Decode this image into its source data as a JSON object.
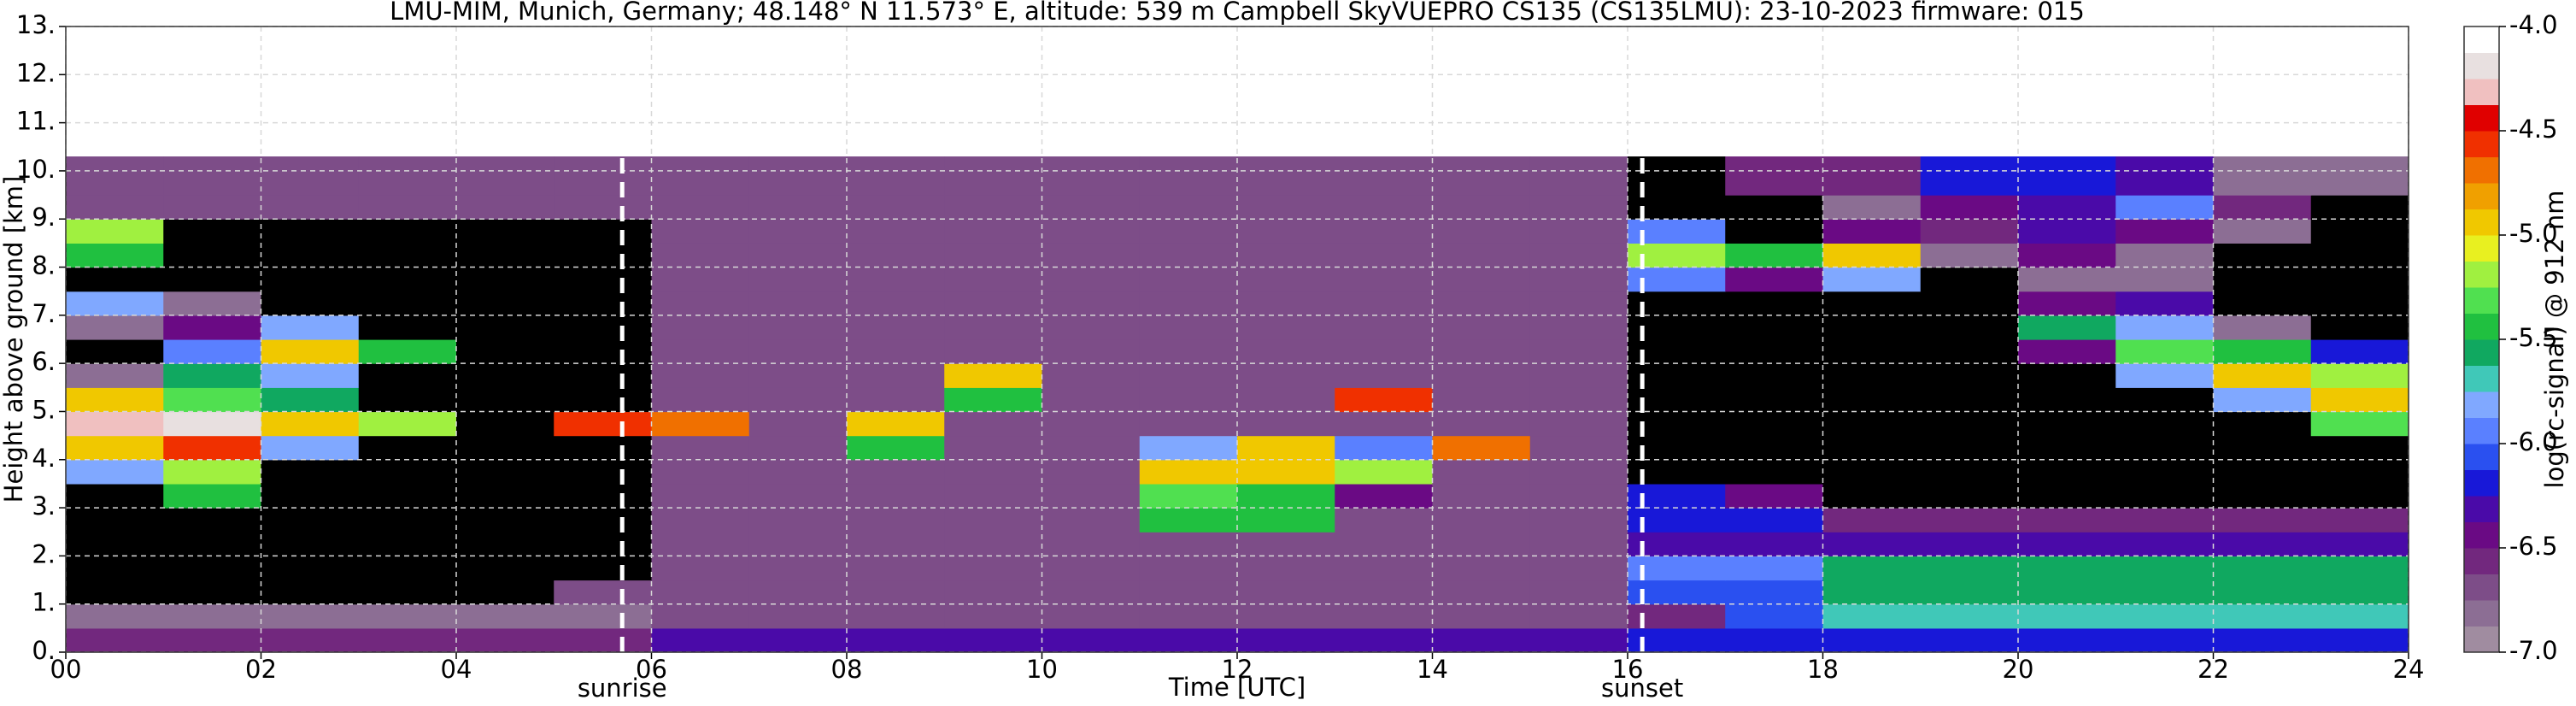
{
  "chart_data": {
    "type": "heatmap",
    "title": "LMU-MIM, Munich, Germany; 48.148° N 11.573° E, altitude: 539 m    Campbell SkyVUEPRO CS135 (CS135LMU): 23-10-2023    firmware: 015",
    "x_label": "Time [UTC]",
    "y_label": "Height above ground [km]",
    "colorbar_label": "log(rc-signal) @ 912 nm",
    "xlim": [
      0,
      24
    ],
    "ylim": [
      0,
      13
    ],
    "xticks": [
      {
        "value": 0,
        "label": "00"
      },
      {
        "value": 2,
        "label": "02"
      },
      {
        "value": 4,
        "label": "04"
      },
      {
        "value": 6,
        "label": "06"
      },
      {
        "value": 8,
        "label": "08"
      },
      {
        "value": 10,
        "label": "10"
      },
      {
        "value": 12,
        "label": "12"
      },
      {
        "value": 14,
        "label": "14"
      },
      {
        "value": 16,
        "label": "16"
      },
      {
        "value": 18,
        "label": "18"
      },
      {
        "value": 20,
        "label": "20"
      },
      {
        "value": 22,
        "label": "22"
      },
      {
        "value": 24,
        "label": "24"
      }
    ],
    "yticks": [
      {
        "value": 0,
        "label": "0."
      },
      {
        "value": 1,
        "label": "1."
      },
      {
        "value": 2,
        "label": "2."
      },
      {
        "value": 3,
        "label": "3."
      },
      {
        "value": 4,
        "label": "4."
      },
      {
        "value": 5,
        "label": "5."
      },
      {
        "value": 6,
        "label": "6."
      },
      {
        "value": 7,
        "label": "7."
      },
      {
        "value": 8,
        "label": "8."
      },
      {
        "value": 9,
        "label": "9."
      },
      {
        "value": 10,
        "label": "10."
      },
      {
        "value": 11,
        "label": "11."
      },
      {
        "value": 12,
        "label": "12."
      },
      {
        "value": 13,
        "label": "13."
      }
    ],
    "zlim": [
      -7,
      -4
    ],
    "zticks": [
      {
        "value": -7,
        "label": "-7.0"
      },
      -6.5,
      {
        "value": -6,
        "label": "-6.0"
      },
      -5.5,
      {
        "value": -5,
        "label": "-5.0"
      },
      -4.5,
      {
        "value": -4,
        "label": "-4.0"
      }
    ],
    "colors": [
      "#a08ca0",
      "#8c6e94",
      "#7d4d88",
      "#72287e",
      "#6a0a84",
      "#4a0aa8",
      "#1818d8",
      "#2a50f0",
      "#5a80ff",
      "#80a8ff",
      "#40c8b8",
      "#10a860",
      "#20c040",
      "#50e050",
      "#a0f040",
      "#e8f020",
      "#f0c800",
      "#f0a000",
      "#f07000",
      "#f03000",
      "#e00000",
      "#f0c0c0",
      "#e8e0e0",
      "#ffffff"
    ],
    "under_color": "#000000",
    "grid": true,
    "annotations": [
      {
        "x": 5.7,
        "label": "sunrise"
      },
      {
        "x": 16.15,
        "label": "sunset"
      }
    ],
    "x_bins": [
      0,
      1,
      2,
      3,
      4,
      5,
      6,
      7,
      8,
      9,
      10,
      11,
      12,
      13,
      14,
      15,
      16,
      17,
      18,
      19,
      20,
      21,
      22,
      23,
      24
    ],
    "y_bins": [
      0,
      0.5,
      1,
      1.5,
      2,
      2.5,
      3,
      3.5,
      4,
      4.5,
      5,
      5.5,
      6,
      6.5,
      7,
      7.5,
      8,
      8.5,
      9,
      9.5,
      10.3
    ],
    "z": [
      [
        -6.6,
        -6.6,
        -6.6,
        -6.6,
        -6.6,
        -6.6,
        -6.3,
        -6.3,
        -6.3,
        -6.3,
        -6.3,
        -6.3,
        -6.3,
        -6.3,
        -6.3,
        -6.3,
        -6.2,
        -6.2,
        -6.2,
        -6.2,
        -6.2,
        -6.2,
        -6.2,
        -6.2
      ],
      [
        -6.8,
        -6.8,
        -6.8,
        -6.8,
        -6.8,
        -6.8,
        -6.7,
        -6.7,
        -6.7,
        -6.7,
        -6.7,
        -6.7,
        -6.7,
        -6.7,
        -6.7,
        -6.7,
        -6.6,
        -6.1,
        -5.7,
        -5.7,
        -5.7,
        -5.7,
        -5.7,
        -5.7
      ],
      [
        -7.5,
        -7.5,
        -7.5,
        -7.5,
        -7.5,
        -6.7,
        -6.7,
        -6.7,
        -6.7,
        -6.7,
        -6.7,
        -6.7,
        -6.7,
        -6.7,
        -6.7,
        -6.7,
        -6.1,
        -6.1,
        -5.6,
        -5.6,
        -5.6,
        -5.6,
        -5.6,
        -5.6
      ],
      [
        -7.5,
        -7.5,
        -7.5,
        -7.5,
        -7.5,
        -7.5,
        -6.7,
        -6.7,
        -6.7,
        -6.7,
        -6.7,
        -6.7,
        -6.7,
        -6.7,
        -6.7,
        -6.7,
        -6.0,
        -6.0,
        -5.6,
        -5.6,
        -5.6,
        -5.6,
        -5.6,
        -5.6
      ],
      [
        -7.5,
        -7.5,
        -7.5,
        -7.5,
        -7.5,
        -7.5,
        -6.7,
        -6.7,
        -6.7,
        -6.7,
        -6.7,
        -6.7,
        -6.7,
        -6.7,
        -6.7,
        -6.7,
        -6.3,
        -6.3,
        -6.3,
        -6.3,
        -6.3,
        -6.3,
        -6.3,
        -6.3
      ],
      [
        -7.5,
        -7.5,
        -7.5,
        -7.5,
        -7.5,
        -7.5,
        -6.7,
        -6.7,
        -6.7,
        -6.7,
        -6.7,
        -5.5,
        -5.5,
        -6.7,
        -6.7,
        -6.7,
        -6.2,
        -6.2,
        -6.6,
        -6.6,
        -6.6,
        -6.6,
        -6.6,
        -6.6
      ],
      [
        -7.5,
        -5.5,
        -7.5,
        -7.5,
        -7.5,
        -7.5,
        -6.7,
        -6.7,
        -6.7,
        -6.7,
        -6.7,
        -5.3,
        -5.5,
        -6.5,
        -6.7,
        -6.7,
        -6.2,
        -6.5,
        -7.5,
        -7.5,
        -7.5,
        -7.5,
        -7.5,
        -7.5
      ],
      [
        -5.8,
        -5.2,
        -7.5,
        -7.5,
        -7.5,
        -7.5,
        -6.7,
        -6.7,
        -6.7,
        -6.7,
        -6.7,
        -5.0,
        -4.9,
        -5.2,
        -6.7,
        -6.7,
        -7.5,
        -7.5,
        -7.5,
        -7.5,
        -7.5,
        -7.5,
        -7.5,
        -7.5
      ],
      [
        -5.0,
        -4.6,
        -5.8,
        -7.5,
        -7.5,
        -7.5,
        -6.7,
        -6.7,
        -5.5,
        -6.7,
        -6.7,
        -5.8,
        -5.0,
        -6.0,
        -4.7,
        -6.7,
        -7.5,
        -7.5,
        -7.5,
        -7.5,
        -7.5,
        -7.5,
        -7.5,
        -7.5
      ],
      [
        -4.3,
        -4.2,
        -5.0,
        -5.2,
        -7.5,
        -4.6,
        -4.7,
        -6.7,
        -5.0,
        -6.7,
        -6.7,
        -6.7,
        -6.7,
        -6.7,
        -6.7,
        -6.7,
        -7.5,
        -7.5,
        -7.5,
        -7.5,
        -7.5,
        -7.5,
        -7.5,
        -5.3
      ],
      [
        -5.0,
        -5.3,
        -5.6,
        -7.5,
        -7.5,
        -7.5,
        -6.7,
        -6.7,
        -6.7,
        -5.5,
        -6.7,
        -6.7,
        -6.7,
        -4.6,
        -6.7,
        -6.7,
        -7.5,
        -7.5,
        -7.5,
        -7.5,
        -7.5,
        -7.5,
        -5.8,
        -5.0
      ],
      [
        -6.8,
        -5.6,
        -5.8,
        -7.5,
        -7.5,
        -7.5,
        -6.7,
        -6.7,
        -6.7,
        -5.0,
        -6.7,
        -6.7,
        -6.7,
        -6.7,
        -6.7,
        -6.7,
        -7.5,
        -7.5,
        -7.5,
        -7.5,
        -7.5,
        -5.8,
        -5.0,
        -5.2
      ],
      [
        -7.5,
        -6.0,
        -5.0,
        -5.5,
        -7.5,
        -7.5,
        -6.7,
        -6.7,
        -6.7,
        -6.7,
        -6.7,
        -6.7,
        -6.7,
        -6.7,
        -6.7,
        -6.7,
        -7.5,
        -7.5,
        -7.5,
        -7.5,
        -6.5,
        -5.3,
        -5.5,
        -6.2
      ],
      [
        -6.8,
        -6.5,
        -5.8,
        -7.5,
        -7.5,
        -7.5,
        -6.7,
        -6.7,
        -6.7,
        -6.7,
        -6.7,
        -6.7,
        -6.7,
        -6.7,
        -6.7,
        -6.7,
        -7.5,
        -7.5,
        -7.5,
        -7.5,
        -5.6,
        -5.8,
        -6.8,
        -7.5
      ],
      [
        -5.8,
        -6.8,
        -7.5,
        -7.5,
        -7.5,
        -7.5,
        -6.7,
        -6.7,
        -6.7,
        -6.7,
        -6.7,
        -6.7,
        -6.7,
        -6.7,
        -6.7,
        -6.7,
        -7.5,
        -7.5,
        -7.5,
        -7.5,
        -6.5,
        -6.3,
        -7.5,
        -7.5
      ],
      [
        -7.5,
        -7.5,
        -7.5,
        -7.5,
        -7.5,
        -7.5,
        -6.7,
        -6.7,
        -6.7,
        -6.7,
        -6.7,
        -6.7,
        -6.7,
        -6.7,
        -6.7,
        -6.7,
        -6.0,
        -6.5,
        -5.8,
        -7.5,
        -6.8,
        -6.8,
        -7.5,
        -7.5
      ],
      [
        -5.5,
        -7.5,
        -7.5,
        -7.5,
        -7.5,
        -7.5,
        -6.7,
        -6.7,
        -6.7,
        -6.7,
        -6.7,
        -6.7,
        -6.7,
        -6.7,
        -6.7,
        -6.7,
        -5.2,
        -5.4,
        -5.0,
        -6.8,
        -6.5,
        -6.8,
        -7.5,
        -7.5
      ],
      [
        -5.2,
        -7.5,
        -7.5,
        -7.5,
        -7.5,
        -7.5,
        -6.7,
        -6.7,
        -6.7,
        -6.7,
        -6.7,
        -6.7,
        -6.7,
        -6.7,
        -6.7,
        -6.7,
        -6.0,
        -7.5,
        -6.5,
        -6.6,
        -6.3,
        -6.5,
        -6.8,
        -7.5
      ],
      [
        -6.7,
        -6.7,
        -6.7,
        -6.7,
        -6.7,
        -6.7,
        -6.7,
        -6.7,
        -6.7,
        -6.7,
        -6.7,
        -6.7,
        -6.7,
        -6.7,
        -6.7,
        -6.7,
        -7.5,
        -7.5,
        -6.8,
        -6.4,
        -6.3,
        -6.0,
        -6.6,
        -7.5
      ],
      [
        -6.7,
        -6.7,
        -6.7,
        -6.7,
        -6.7,
        -6.7,
        -6.7,
        -6.7,
        -6.7,
        -6.7,
        -6.7,
        -6.7,
        -6.7,
        -6.7,
        -6.7,
        -6.7,
        -7.5,
        -6.6,
        -6.6,
        -6.2,
        -6.2,
        -6.3,
        -6.8,
        -6.8
      ]
    ]
  }
}
